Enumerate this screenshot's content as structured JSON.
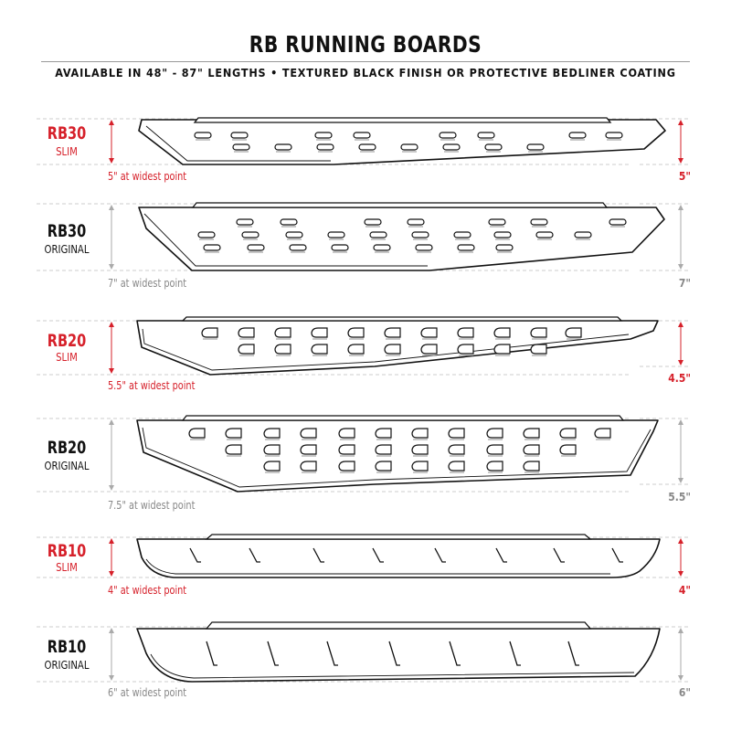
{
  "title": "RB RUNNING BOARDS",
  "subtitle": "AVAILABLE IN 48\" - 87\" LENGTHS   •  TEXTURED BLACK FINISH OR PROTECTIVE BEDLINER COATING",
  "colors": {
    "accent": "#d6202a",
    "original": "#111111",
    "dimension_gray": "#888888"
  },
  "boards": [
    {
      "model": "RB30",
      "variant": "SLIM",
      "caption": "5\" at widest point",
      "right_dim": "5\"",
      "color": "red"
    },
    {
      "model": "RB30",
      "variant": "ORIGINAL",
      "caption": "7\" at widest point",
      "right_dim": "7\"",
      "color": "gray"
    },
    {
      "model": "RB20",
      "variant": "SLIM",
      "caption": "5.5\" at widest point",
      "right_dim": "4.5\"",
      "color": "red"
    },
    {
      "model": "RB20",
      "variant": "ORIGINAL",
      "caption": "7.5\" at widest point",
      "right_dim": "5.5\"",
      "color": "gray"
    },
    {
      "model": "RB10",
      "variant": "SLIM",
      "caption": "4\" at widest point",
      "right_dim": "4\"",
      "color": "red"
    },
    {
      "model": "RB10",
      "variant": "ORIGINAL",
      "caption": "6\" at widest point",
      "right_dim": "6\"",
      "color": "gray"
    }
  ]
}
